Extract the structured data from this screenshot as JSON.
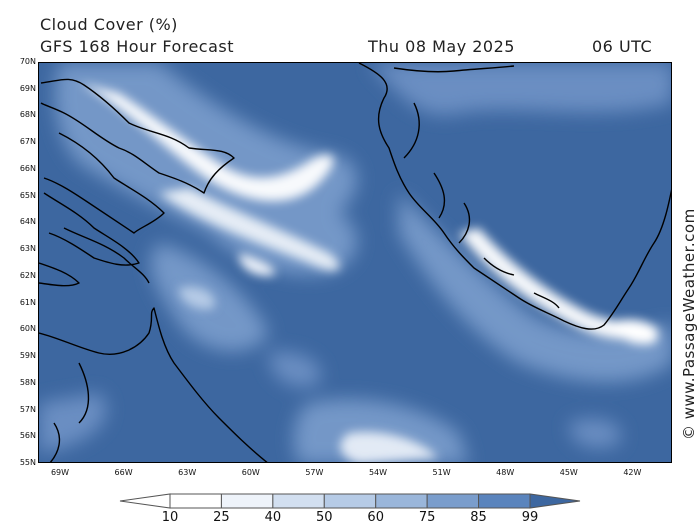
{
  "title": "Cloud Cover (%)",
  "subtitle": "GFS 168 Hour Forecast",
  "valid_date": "Thu 08 May 2025",
  "valid_time": "06 UTC",
  "watermark": "© www.PassageWeather.com",
  "map": {
    "lat_labels": [
      "70N",
      "69N",
      "68N",
      "67N",
      "66N",
      "65N",
      "64N",
      "63N",
      "62N",
      "61N",
      "60N",
      "59N",
      "58N",
      "57N",
      "56N",
      "55N"
    ],
    "lon_labels": [
      "69W",
      "66W",
      "63W",
      "60W",
      "57W",
      "54W",
      "51W",
      "48W",
      "45W",
      "42W"
    ],
    "lat_range": [
      55,
      70
    ],
    "lon_range": [
      -70,
      -40.5
    ],
    "colors": {
      "background": "#3d67a0",
      "land_outline": "#000000"
    }
  },
  "legend": {
    "ticks": [
      "10",
      "25",
      "40",
      "50",
      "60",
      "75",
      "85",
      "99"
    ],
    "bins": [
      {
        "range": "<10",
        "color": "#ffffff"
      },
      {
        "range": "10-25",
        "color": "#ffffff"
      },
      {
        "range": "25-40",
        "color": "#eef3fa"
      },
      {
        "range": "40-50",
        "color": "#d2dff0"
      },
      {
        "range": "50-60",
        "color": "#b6cbe6"
      },
      {
        "range": "60-75",
        "color": "#9ab6da"
      },
      {
        "range": "75-85",
        "color": "#7a9dcc"
      },
      {
        "range": "85-99",
        "color": "#5a84bd"
      },
      {
        "range": ">99",
        "color": "#3d67a0"
      }
    ]
  }
}
